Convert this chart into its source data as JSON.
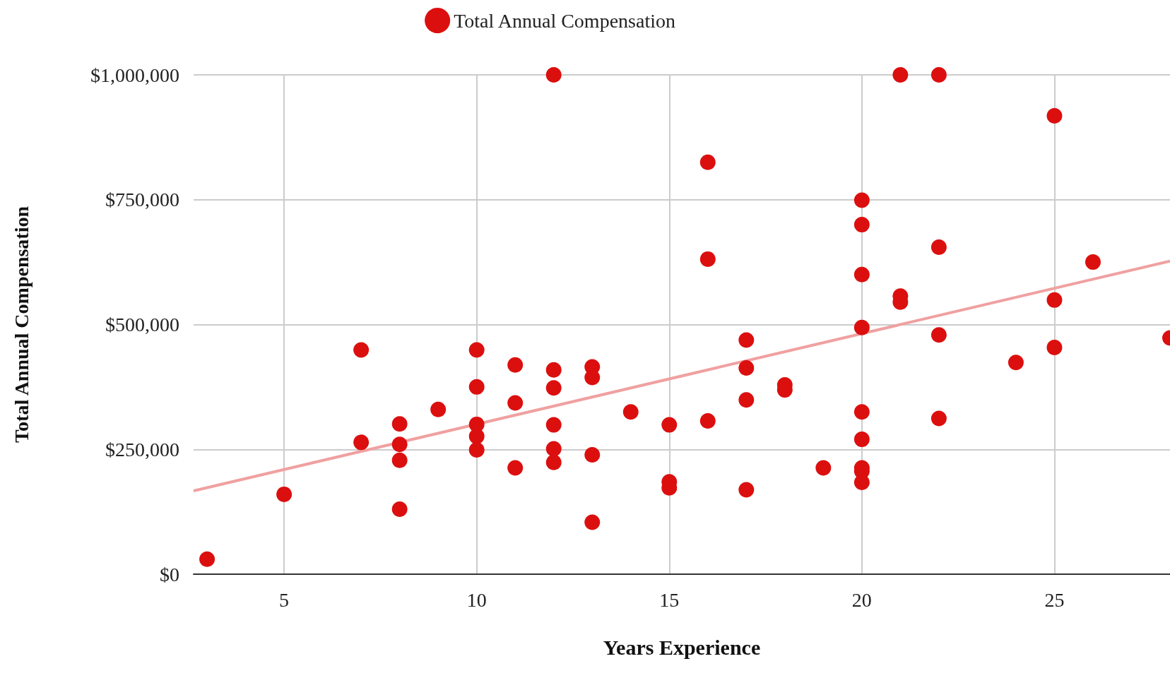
{
  "chart_data": {
    "type": "scatter",
    "xlabel": "Years Experience",
    "ylabel": "Total Annual Compensation",
    "xlim": [
      2.65,
      28
    ],
    "ylim": [
      0,
      1000000
    ],
    "xticks": [
      5,
      10,
      15,
      20,
      25
    ],
    "yticks": [
      {
        "value": 0,
        "label": "$0"
      },
      {
        "value": 250000,
        "label": "$250,000"
      },
      {
        "value": 500000,
        "label": "$500,000"
      },
      {
        "value": 750000,
        "label": "$750,000"
      },
      {
        "value": 1000000,
        "label": "$1,000,000"
      }
    ],
    "grid": true,
    "legend": "top",
    "series": [
      {
        "name": "Total Annual Compensation",
        "color": "#dc0f0f",
        "marker": "circle",
        "x": [
          3,
          5,
          7,
          7,
          8,
          8,
          8,
          8,
          9,
          10,
          10,
          10,
          10,
          10,
          11,
          11,
          11,
          12,
          12,
          12,
          12,
          12,
          12,
          13,
          13,
          13,
          13,
          14,
          15,
          15,
          15,
          16,
          16,
          16,
          17,
          17,
          17,
          17,
          18,
          18,
          19,
          20,
          20,
          20,
          20,
          20,
          20,
          20,
          20,
          20,
          21,
          21,
          21,
          22,
          22,
          22,
          22,
          24,
          25,
          25,
          25,
          26,
          28
        ],
        "values": [
          30000,
          160000,
          449000,
          264000,
          301000,
          260000,
          228000,
          130000,
          330000,
          449000,
          375000,
          300000,
          276000,
          249000,
          419000,
          343000,
          213000,
          1000000,
          409000,
          373000,
          299000,
          251000,
          224000,
          415000,
          394000,
          239000,
          104000,
          325000,
          299000,
          185000,
          173000,
          825000,
          631000,
          307000,
          469000,
          413000,
          349000,
          169000,
          379000,
          369000,
          213000,
          749000,
          700000,
          600000,
          494000,
          325000,
          270000,
          213000,
          206000,
          184000,
          1000000,
          557000,
          545000,
          1000000,
          655000,
          479000,
          312000,
          424000,
          918000,
          549000,
          454000,
          625000,
          473000
        ]
      },
      {
        "type": "line",
        "color": "#f0a0a0",
        "marker": "none",
        "x": [
          2.65,
          28
        ],
        "values": [
          167000,
          627000
        ]
      }
    ]
  }
}
